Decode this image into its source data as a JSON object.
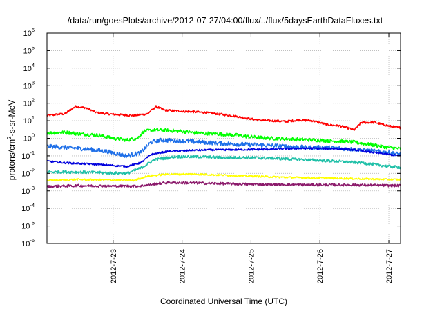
{
  "chart_data": {
    "type": "line",
    "title": "/data/run/goesPlots/archive/2012-07-27/04:00/flux/../flux/5daysEarthDataFluxes.txt",
    "xlabel": "Coordinated Universal Time (UTC)",
    "ylabel": "protons/cm²-s-sr-MeV",
    "ylabel_base": "protons/cm",
    "ylabel_sup": "2",
    "ylabel_rest": "-s-sr-MeV",
    "yscale": "log",
    "ylim": [
      1e-06,
      1000000.0
    ],
    "y_ticks": [
      {
        "value": -6,
        "base": "10",
        "exp": "-6"
      },
      {
        "value": -5,
        "base": "10",
        "exp": "-5"
      },
      {
        "value": -4,
        "base": "10",
        "exp": "-4"
      },
      {
        "value": -3,
        "base": "10",
        "exp": "-3"
      },
      {
        "value": -2,
        "base": "10",
        "exp": "-2"
      },
      {
        "value": -1,
        "base": "10",
        "exp": "-1"
      },
      {
        "value": 0,
        "base": "10",
        "exp": "0"
      },
      {
        "value": 1,
        "base": "10",
        "exp": "1"
      },
      {
        "value": 2,
        "base": "10",
        "exp": "2"
      },
      {
        "value": 3,
        "base": "10",
        "exp": "3"
      },
      {
        "value": 4,
        "base": "10",
        "exp": "4"
      },
      {
        "value": 5,
        "base": "10",
        "exp": "5"
      },
      {
        "value": 6,
        "base": "10",
        "exp": "6"
      }
    ],
    "x_ticks": [
      "2012-7-23",
      "2012-7-24",
      "2012-7-25",
      "2012-7-26",
      "2012-7-27"
    ],
    "xlim_days": [
      22.04,
      27.17
    ],
    "grid": true,
    "series": [
      {
        "color": "#ff0000",
        "noise": 0.06,
        "x": [
          22.04,
          22.3,
          22.45,
          22.6,
          22.75,
          22.9,
          23.1,
          23.3,
          23.5,
          23.62,
          23.75,
          24.0,
          24.3,
          24.5,
          24.7,
          24.9,
          25.1,
          25.3,
          25.5,
          25.7,
          25.9,
          26.1,
          26.3,
          26.5,
          26.6,
          26.8,
          27.0,
          27.17
        ],
        "y": [
          20,
          25,
          65,
          55,
          30,
          25,
          22,
          20,
          25,
          65,
          40,
          35,
          30,
          25,
          20,
          15,
          11,
          10,
          9,
          11,
          10,
          6,
          5,
          3,
          8,
          8,
          5,
          4
        ]
      },
      {
        "color": "#00ff00",
        "noise": 0.1,
        "x": [
          22.04,
          22.3,
          22.5,
          22.8,
          23.0,
          23.2,
          23.35,
          23.45,
          23.6,
          23.8,
          24.0,
          24.2,
          24.5,
          24.8,
          25.0,
          25.3,
          25.6,
          25.9,
          26.2,
          26.5,
          26.8,
          27.0,
          27.17
        ],
        "y": [
          2.0,
          2.2,
          1.8,
          1.5,
          1.0,
          0.8,
          1.0,
          2.5,
          3.0,
          2.8,
          2.5,
          2.0,
          1.8,
          1.5,
          1.2,
          1.0,
          0.9,
          0.8,
          0.7,
          0.6,
          0.4,
          0.3,
          0.25
        ]
      },
      {
        "color": "#1e6fe8",
        "noise": 0.12,
        "x": [
          22.04,
          22.3,
          22.6,
          22.9,
          23.2,
          23.4,
          23.55,
          23.7,
          24.0,
          24.3,
          24.6,
          24.9,
          25.2,
          25.5,
          25.8,
          26.1,
          26.4,
          26.7,
          27.0,
          27.17
        ],
        "y": [
          0.35,
          0.3,
          0.25,
          0.18,
          0.1,
          0.15,
          0.6,
          0.8,
          0.7,
          0.6,
          0.5,
          0.45,
          0.4,
          0.35,
          0.3,
          0.3,
          0.25,
          0.2,
          0.15,
          0.12
        ]
      },
      {
        "color": "#0000dd",
        "noise": 0.05,
        "x": [
          22.04,
          22.3,
          22.6,
          22.9,
          23.2,
          23.4,
          23.55,
          23.8,
          24.1,
          24.4,
          24.7,
          25.0,
          25.3,
          25.6,
          25.9,
          26.2,
          26.5,
          26.8,
          27.0,
          27.17
        ],
        "y": [
          0.05,
          0.04,
          0.035,
          0.03,
          0.025,
          0.04,
          0.12,
          0.18,
          0.2,
          0.22,
          0.22,
          0.23,
          0.24,
          0.26,
          0.27,
          0.26,
          0.22,
          0.15,
          0.12,
          0.1
        ]
      },
      {
        "color": "#20c0a8",
        "noise": 0.08,
        "x": [
          22.04,
          22.4,
          22.8,
          23.2,
          23.4,
          23.6,
          23.9,
          24.2,
          24.6,
          25.0,
          25.4,
          25.8,
          26.2,
          26.6,
          27.0,
          27.17
        ],
        "y": [
          0.012,
          0.012,
          0.011,
          0.01,
          0.02,
          0.06,
          0.09,
          0.09,
          0.08,
          0.08,
          0.07,
          0.06,
          0.05,
          0.04,
          0.025,
          0.022
        ]
      },
      {
        "color": "#ffff00",
        "noise": 0.05,
        "x": [
          22.04,
          22.5,
          23.0,
          23.3,
          23.5,
          23.8,
          24.2,
          24.6,
          25.0,
          25.5,
          26.0,
          26.5,
          27.0,
          27.17
        ],
        "y": [
          0.004,
          0.0045,
          0.0042,
          0.004,
          0.007,
          0.009,
          0.009,
          0.008,
          0.007,
          0.006,
          0.0055,
          0.005,
          0.0045,
          0.0045
        ]
      },
      {
        "color": "#8b1a6b",
        "noise": 0.07,
        "x": [
          22.04,
          22.5,
          23.0,
          23.4,
          23.6,
          23.8,
          24.2,
          24.6,
          25.0,
          25.5,
          26.0,
          26.5,
          27.0,
          27.17
        ],
        "y": [
          0.0018,
          0.002,
          0.0019,
          0.0019,
          0.0025,
          0.003,
          0.0028,
          0.0026,
          0.0024,
          0.0023,
          0.0022,
          0.0022,
          0.002,
          0.002
        ]
      }
    ]
  }
}
